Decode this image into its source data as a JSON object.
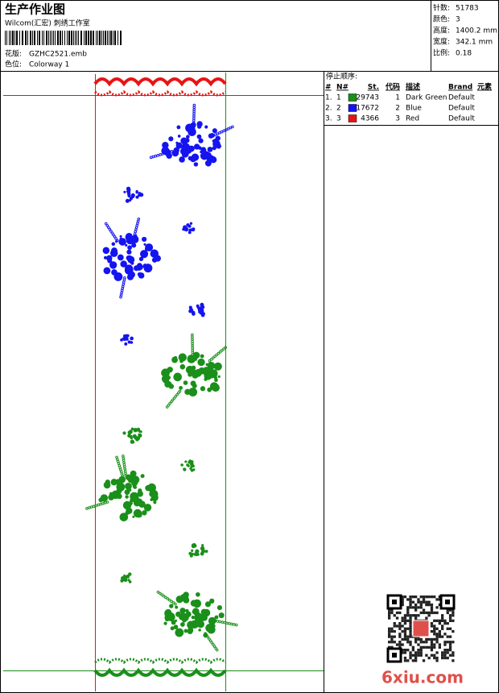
{
  "header": {
    "title": "生产作业图",
    "studio": "Wilcom(汇宏) 刺绣工作室",
    "design_label": "花版:",
    "design": "GZHC2521.emb",
    "colorway_label": "色位:",
    "colorway": "Colorway 1"
  },
  "info": [
    {
      "label": "针数:",
      "value": "51783"
    },
    {
      "label": "颜色:",
      "value": "3"
    },
    {
      "label": "高度:",
      "value": "1400.2 mm"
    },
    {
      "label": "宽度:",
      "value": "342.1 mm"
    },
    {
      "label": "比例:",
      "value": "0.18"
    }
  ],
  "stop_sequence": {
    "title": "停止顺序:",
    "columns": [
      "#",
      "N#",
      "St.",
      "代码",
      "描述",
      "Brand",
      "元素"
    ],
    "rows": [
      {
        "index": "1.",
        "n": "1",
        "color": "#1a8f1a",
        "stitches": 29743,
        "code": 1,
        "description": "Dark Green",
        "brand": "Default"
      },
      {
        "index": "2.",
        "n": "2",
        "color": "#1414f0",
        "stitches": 17672,
        "code": 2,
        "description": "Blue",
        "brand": "Default"
      },
      {
        "index": "3.",
        "n": "3",
        "color": "#e81414",
        "stitches": 4366,
        "code": 3,
        "description": "Red",
        "brand": "Default"
      }
    ]
  },
  "watermark": "6xiu.com"
}
